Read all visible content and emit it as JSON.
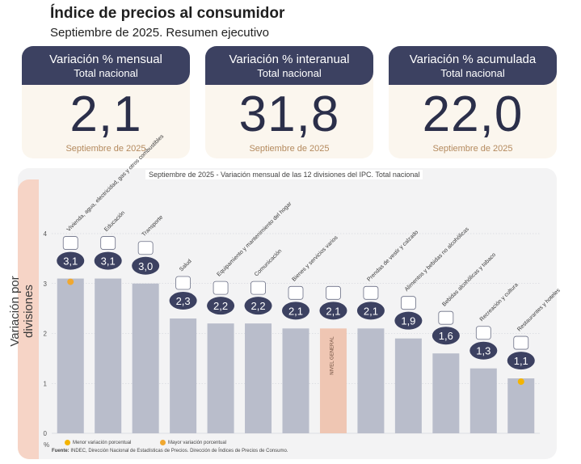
{
  "header": {
    "title": "Índice de precios al consumidor",
    "subtitle": "Septiembre de 2025. Resumen ejecutivo"
  },
  "kpis": [
    {
      "label": "Variación % mensual",
      "scope": "Total nacional",
      "value": "2,1",
      "date": "Septiembre de 2025"
    },
    {
      "label": "Variación % interanual",
      "scope": "Total nacional",
      "value": "31,8",
      "date": "Septiembre de 2025"
    },
    {
      "label": "Variación % acumulada",
      "scope": "Total nacional",
      "value": "22,0",
      "date": "Septiembre de 2025"
    }
  ],
  "colors": {
    "header": "#3c4161",
    "bar": "#b9bdcb",
    "highlight_bar": "#efc6b3",
    "min_dot": "#f4b400",
    "max_dot": "#f0a830"
  },
  "chart_data": {
    "type": "bar",
    "title": "Septiembre de 2025 - Variación mensual de las 12 divisiones del IPC. Total nacional",
    "ylabel": "Variación por divisiones",
    "yunit": "%",
    "ylim": [
      0,
      4
    ],
    "yticks": [
      "0",
      "1",
      "2",
      "3",
      "4"
    ],
    "grid": true,
    "categories": [
      "Vivienda, agua, electricidad, gas y otros combustibles",
      "Educación",
      "Transporte",
      "Salud",
      "Equipamiento y mantenimiento del hogar",
      "Comunicación",
      "Bienes y servicios varios",
      "NIVEL GENERAL",
      "Prendas de vestir y calzado",
      "Alimentos y bebidas no alcohólicas",
      "Bebidas alcohólicas y tabaco",
      "Recreación y cultura",
      "Restaurantes y hoteles"
    ],
    "values": [
      3.1,
      3.1,
      3.0,
      2.3,
      2.2,
      2.2,
      2.1,
      2.1,
      2.1,
      1.9,
      1.6,
      1.3,
      1.1
    ],
    "value_labels": [
      "3,1",
      "3,1",
      "3,0",
      "2,3",
      "2,2",
      "2,2",
      "2,1",
      "2,1",
      "2,1",
      "1,9",
      "1,6",
      "1,3",
      "1,1"
    ],
    "general_index": "NIVEL GENERAL",
    "max_index": 0,
    "min_index": 12,
    "legend": [
      "Menor variación porcentual",
      "Mayor variación porcentual"
    ]
  },
  "footer": {
    "source_label": "Fuente:",
    "source_text": "INDEC, Dirección Nacional de Estadísticas de Precios. Dirección de Índices de Precios de Consumo."
  }
}
